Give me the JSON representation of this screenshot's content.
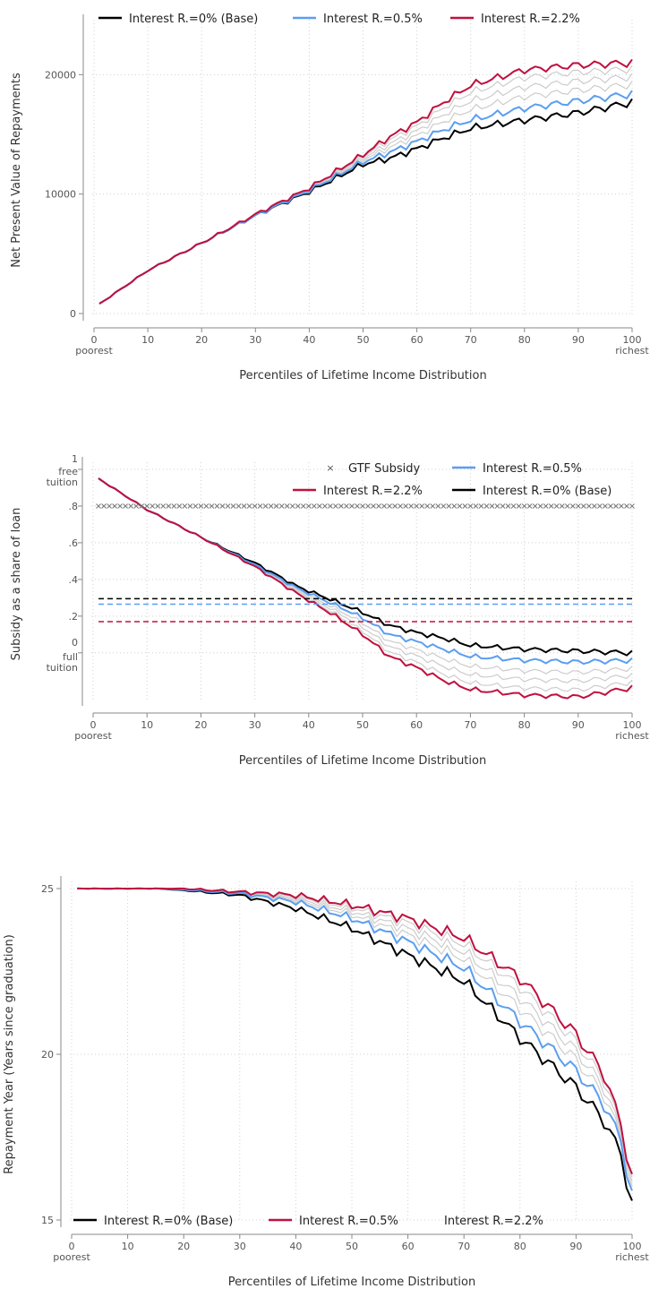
{
  "colors": {
    "base": "#000000",
    "mid": "#5b9ef0",
    "high": "#c0103f",
    "grey": "#cccccc",
    "gtf": "#777777"
  },
  "chart_data": [
    {
      "type": "line",
      "xlabel": "Percentiles of Lifetime Income Distribution",
      "ylabel": "Net Present Value of Repayments",
      "x_ticks": [
        "0",
        "10",
        "20",
        "30",
        "40",
        "50",
        "60",
        "70",
        "80",
        "90",
        "100"
      ],
      "x_end_labels": {
        "left": "poorest",
        "right": "richest"
      },
      "y_ticks": [
        "0",
        "10000",
        "20000"
      ],
      "xlim": [
        0,
        100
      ],
      "ylim": [
        0,
        24000
      ],
      "legend": [
        "Interest R.=0% (Base)",
        "Interest R.=0.5%",
        "Interest R.=2.2%"
      ],
      "series_knots": {
        "base": [
          [
            1,
            800
          ],
          [
            10,
            3600
          ],
          [
            20,
            5900
          ],
          [
            30,
            8200
          ],
          [
            40,
            10200
          ],
          [
            50,
            12500
          ],
          [
            55,
            13000
          ],
          [
            60,
            13800
          ],
          [
            65,
            14700
          ],
          [
            70,
            15500
          ],
          [
            80,
            16200
          ],
          [
            90,
            16800
          ],
          [
            100,
            17700
          ]
        ],
        "mid": [
          [
            1,
            800
          ],
          [
            10,
            3600
          ],
          [
            20,
            5900
          ],
          [
            30,
            8200
          ],
          [
            40,
            10300
          ],
          [
            50,
            12700
          ],
          [
            55,
            13500
          ],
          [
            60,
            14400
          ],
          [
            65,
            15400
          ],
          [
            70,
            16200
          ],
          [
            80,
            17200
          ],
          [
            90,
            17800
          ],
          [
            100,
            18400
          ]
        ],
        "high": [
          [
            1,
            800
          ],
          [
            10,
            3600
          ],
          [
            20,
            5900
          ],
          [
            30,
            8300
          ],
          [
            40,
            10500
          ],
          [
            50,
            13300
          ],
          [
            55,
            14800
          ],
          [
            60,
            16000
          ],
          [
            65,
            17700
          ],
          [
            70,
            19100
          ],
          [
            80,
            20400
          ],
          [
            90,
            20800
          ],
          [
            100,
            21000
          ]
        ]
      }
    },
    {
      "type": "line",
      "xlabel": "Percentiles of Lifetime Income Distribution",
      "ylabel": "Subsidy as a share of loan",
      "x_ticks": [
        "0",
        "10",
        "20",
        "30",
        "40",
        "50",
        "60",
        "70",
        "80",
        "90",
        "100"
      ],
      "x_end_labels": {
        "left": "poorest",
        "right": "richest"
      },
      "y_ticks": [
        "1",
        ".8",
        ".6",
        ".4",
        ".2",
        "0"
      ],
      "y_top_label": "free\ntuition",
      "y_zero_label": "full\ntuition",
      "xlim": [
        0,
        100
      ],
      "ylim": [
        -0.25,
        1.0
      ],
      "legend": [
        "GTF Subsidy",
        "Interest R.=0.5%",
        "Interest R.=2.2%",
        "Interest R.=0% (Base)"
      ],
      "gtf_level": 0.8,
      "mean_lines": {
        "base": 0.295,
        "mid": 0.265,
        "high": 0.17
      },
      "series_knots": {
        "base": [
          [
            1,
            0.95
          ],
          [
            10,
            0.78
          ],
          [
            20,
            0.63
          ],
          [
            30,
            0.49
          ],
          [
            38,
            0.36
          ],
          [
            45,
            0.28
          ],
          [
            50,
            0.22
          ],
          [
            55,
            0.15
          ],
          [
            60,
            0.11
          ],
          [
            65,
            0.08
          ],
          [
            70,
            0.04
          ],
          [
            80,
            0.02
          ],
          [
            90,
            0.01
          ],
          [
            100,
            0.0
          ]
        ],
        "mid": [
          [
            1,
            0.95
          ],
          [
            10,
            0.78
          ],
          [
            20,
            0.63
          ],
          [
            30,
            0.48
          ],
          [
            38,
            0.35
          ],
          [
            45,
            0.26
          ],
          [
            50,
            0.19
          ],
          [
            55,
            0.1
          ],
          [
            60,
            0.06
          ],
          [
            65,
            0.02
          ],
          [
            70,
            -0.02
          ],
          [
            80,
            -0.04
          ],
          [
            90,
            -0.05
          ],
          [
            100,
            -0.04
          ]
        ],
        "high": [
          [
            1,
            0.95
          ],
          [
            10,
            0.78
          ],
          [
            20,
            0.63
          ],
          [
            30,
            0.47
          ],
          [
            38,
            0.32
          ],
          [
            45,
            0.2
          ],
          [
            50,
            0.1
          ],
          [
            55,
            -0.02
          ],
          [
            60,
            -0.08
          ],
          [
            65,
            -0.15
          ],
          [
            70,
            -0.2
          ],
          [
            80,
            -0.23
          ],
          [
            90,
            -0.24
          ],
          [
            100,
            -0.19
          ]
        ]
      }
    },
    {
      "type": "line",
      "xlabel": "Percentiles of Lifetime Income Distribution",
      "ylabel": "Repayment Year (Years since graduation)",
      "x_ticks": [
        "0",
        "10",
        "20",
        "30",
        "40",
        "50",
        "60",
        "70",
        "80",
        "90",
        "100"
      ],
      "x_end_labels": {
        "left": "poorest",
        "right": "richest"
      },
      "y_ticks": [
        "25",
        "20",
        "15"
      ],
      "xlim": [
        0,
        100
      ],
      "ylim": [
        15,
        25
      ],
      "legend": [
        "Interest R.=0% (Base)",
        "Interest R.=0.5%",
        "Interest R.=2.2%"
      ],
      "series_knots": {
        "base": [
          [
            1,
            25
          ],
          [
            15,
            25
          ],
          [
            20,
            24.95
          ],
          [
            30,
            24.8
          ],
          [
            40,
            24.4
          ],
          [
            50,
            23.8
          ],
          [
            60,
            23.0
          ],
          [
            70,
            22.2
          ],
          [
            80,
            20.5
          ],
          [
            90,
            19.0
          ],
          [
            95,
            18.0
          ],
          [
            98,
            17.0
          ],
          [
            100,
            15.4
          ]
        ],
        "mid": [
          [
            1,
            25
          ],
          [
            15,
            25
          ],
          [
            20,
            24.97
          ],
          [
            30,
            24.85
          ],
          [
            40,
            24.6
          ],
          [
            50,
            24.1
          ],
          [
            60,
            23.4
          ],
          [
            70,
            22.6
          ],
          [
            80,
            21.0
          ],
          [
            90,
            19.5
          ],
          [
            95,
            18.5
          ],
          [
            98,
            17.4
          ],
          [
            100,
            15.7
          ]
        ],
        "high": [
          [
            1,
            25
          ],
          [
            15,
            25
          ],
          [
            20,
            25
          ],
          [
            30,
            24.9
          ],
          [
            40,
            24.8
          ],
          [
            50,
            24.5
          ],
          [
            60,
            24.1
          ],
          [
            70,
            23.5
          ],
          [
            80,
            22.3
          ],
          [
            90,
            20.6
          ],
          [
            95,
            19.4
          ],
          [
            98,
            17.9
          ],
          [
            100,
            16.2
          ]
        ]
      }
    }
  ]
}
